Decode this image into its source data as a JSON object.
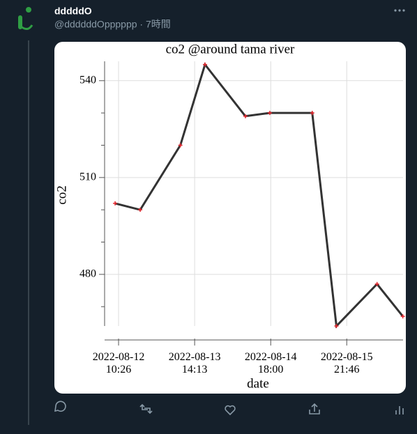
{
  "tweet": {
    "name": "dddddO",
    "meta": "@ddddddOpppppp · 7時間"
  },
  "chart_data": {
    "type": "line",
    "title": "co2 @around tama river",
    "x_label": "date",
    "y_label": "co2",
    "x": [
      "2022-08-12 09:10",
      "2022-08-12 18:20",
      "2022-08-13 09:00",
      "2022-08-13 18:00",
      "2022-08-14 08:45",
      "2022-08-14 17:40",
      "2022-08-15 09:10",
      "2022-08-15 18:00",
      "2022-08-16 08:50",
      "2022-08-16 18:15"
    ],
    "series": [
      {
        "name": "co2",
        "color": "#333333",
        "marker_color": "#e8262d",
        "values": [
          502,
          500,
          520,
          545,
          529,
          530,
          530,
          464,
          477,
          467
        ]
      }
    ],
    "xlim": [
      "2022-08-12 05:20",
      "2022-08-16 18:20"
    ],
    "xticks": [
      {
        "value": "2022-08-12 10:26",
        "label": "2022-08-12\n10:26"
      },
      {
        "value": "2022-08-13 14:13",
        "label": "2022-08-13\n14:13"
      },
      {
        "value": "2022-08-14 18:00",
        "label": "2022-08-14\n18:00"
      },
      {
        "value": "2022-08-15 21:46",
        "label": "2022-08-15\n21:46"
      }
    ],
    "ylim": [
      464,
      546
    ],
    "yticks": [
      480,
      510,
      540
    ],
    "yminor_ticks": [
      470,
      490,
      500,
      520,
      530
    ],
    "grid": true
  }
}
